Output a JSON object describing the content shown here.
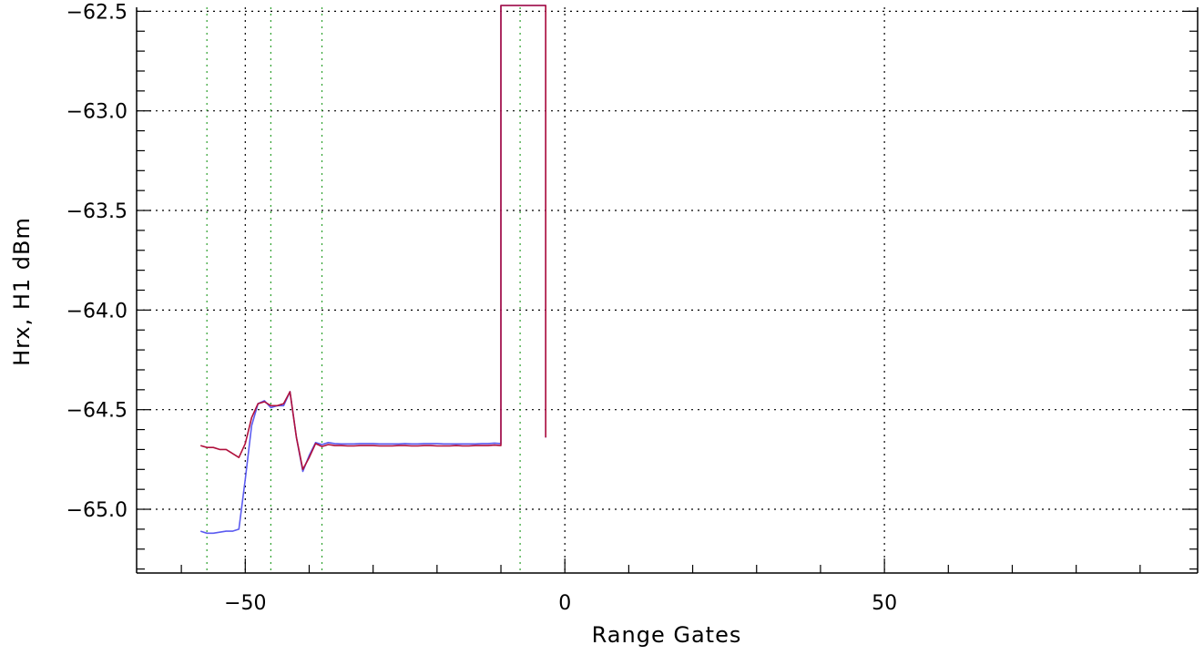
{
  "chart_data": {
    "type": "line",
    "xlabel": "Range Gates",
    "ylabel": "Hrx, H1 dBm",
    "xlim": [
      -67,
      99
    ],
    "ylim": [
      -65.32,
      -62.48
    ],
    "x_ticks": [
      -50,
      0,
      50
    ],
    "y_ticks": [
      -62.5,
      -63.0,
      -63.5,
      -64.0,
      -64.5,
      -65.0
    ],
    "x_tick_labels": [
      "−50",
      "0",
      "50"
    ],
    "y_tick_labels": [
      "−62.5",
      "−63.0",
      "−63.5",
      "−64.0",
      "−64.5",
      "−65.0"
    ],
    "grid": true,
    "vertical_markers": [
      -56,
      -46,
      -38,
      -7
    ],
    "colors": {
      "series_blue": "#5b5bf0",
      "series_red": "#b0103c",
      "grid": "#000000",
      "markers": "#2ca02c"
    },
    "series": [
      {
        "color": "#5b5bf0",
        "x": [
          -57,
          -56,
          -55,
          -54,
          -53,
          -52,
          -51,
          -50,
          -49,
          -48,
          -47,
          -46,
          -45,
          -44,
          -43,
          -42,
          -41,
          -40,
          -39,
          -38,
          -37,
          -36,
          -35,
          -34,
          -33,
          -32,
          -31,
          -30,
          -29,
          -28,
          -27,
          -26,
          -25,
          -24,
          -23,
          -22,
          -21,
          -20,
          -19,
          -18,
          -17,
          -16,
          -15,
          -14,
          -13,
          -12,
          -11,
          -10,
          -10,
          -3,
          -3
        ],
        "y": [
          -65.11,
          -65.12,
          -65.12,
          -65.115,
          -65.11,
          -65.11,
          -65.1,
          -64.85,
          -64.58,
          -64.47,
          -64.455,
          -64.49,
          -64.48,
          -64.48,
          -64.41,
          -64.64,
          -64.81,
          -64.73,
          -64.665,
          -64.675,
          -64.665,
          -64.67,
          -64.672,
          -64.672,
          -64.672,
          -64.67,
          -64.67,
          -64.67,
          -64.672,
          -64.672,
          -64.672,
          -64.672,
          -64.67,
          -64.672,
          -64.672,
          -64.67,
          -64.67,
          -64.67,
          -64.672,
          -64.672,
          -64.672,
          -64.672,
          -64.672,
          -64.672,
          -64.67,
          -64.67,
          -64.668,
          -64.67,
          -62.4,
          -62.4,
          -64.64
        ]
      },
      {
        "color": "#b0103c",
        "x": [
          -57,
          -56,
          -55,
          -54,
          -53,
          -52,
          -51,
          -50,
          -49,
          -48,
          -47,
          -46,
          -45,
          -44,
          -43,
          -42,
          -41,
          -40,
          -39,
          -38,
          -37,
          -36,
          -35,
          -34,
          -33,
          -32,
          -31,
          -30,
          -29,
          -28,
          -27,
          -26,
          -25,
          -24,
          -23,
          -22,
          -21,
          -20,
          -19,
          -18,
          -17,
          -16,
          -15,
          -14,
          -13,
          -12,
          -11,
          -10,
          -10,
          -3,
          -3
        ],
        "y": [
          -64.68,
          -64.69,
          -64.69,
          -64.7,
          -64.7,
          -64.72,
          -64.74,
          -64.67,
          -64.54,
          -64.47,
          -64.46,
          -64.48,
          -64.48,
          -64.47,
          -64.41,
          -64.64,
          -64.8,
          -64.74,
          -64.67,
          -64.685,
          -64.675,
          -64.68,
          -64.68,
          -64.682,
          -64.682,
          -64.68,
          -64.68,
          -64.68,
          -64.682,
          -64.682,
          -64.682,
          -64.68,
          -64.68,
          -64.682,
          -64.682,
          -64.68,
          -64.68,
          -64.682,
          -64.682,
          -64.682,
          -64.68,
          -64.682,
          -64.682,
          -64.68,
          -64.68,
          -64.68,
          -64.678,
          -64.68,
          -62.4,
          -62.4,
          -64.64
        ]
      }
    ]
  }
}
